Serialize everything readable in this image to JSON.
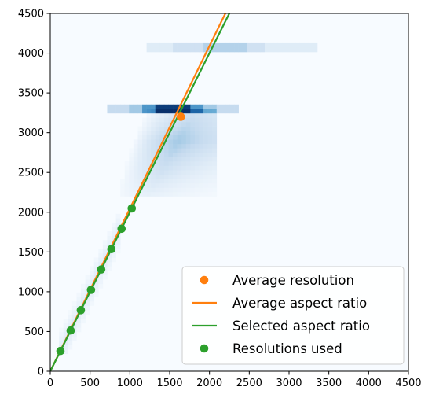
{
  "chart_data": {
    "type": "scatter",
    "title": "",
    "xlabel": "",
    "ylabel": "",
    "xlim": [
      0,
      4500
    ],
    "ylim": [
      0,
      4500
    ],
    "xticks": [
      "0",
      "500",
      "1000",
      "1500",
      "2000",
      "2500",
      "3000",
      "3500",
      "4000",
      "4500"
    ],
    "yticks": [
      "0",
      "500",
      "1000",
      "1500",
      "2000",
      "2500",
      "3000",
      "3500",
      "4000",
      "4500"
    ],
    "grid": false,
    "legend_position": "bottom-right",
    "background": {
      "type": "heatmap",
      "colormap": "Blues",
      "description_regions": [
        {
          "x_range": [
            1250,
            2300
          ],
          "y": 3290,
          "intensity": "high"
        },
        {
          "x_range": [
            1250,
            3300
          ],
          "y": 4080,
          "intensity": "medium"
        },
        {
          "x_range": [
            850,
            2000
          ],
          "y_range": [
            2300,
            3250
          ],
          "intensity": "low"
        }
      ]
    },
    "series": [
      {
        "name": "Average resolution",
        "type": "scatter",
        "color": "#ff7f0e",
        "points": [
          {
            "x": 1640,
            "y": 3200
          }
        ]
      },
      {
        "name": "Average aspect ratio",
        "type": "line",
        "color": "#ff7f0e",
        "points": [
          {
            "x": 0,
            "y": 0
          },
          {
            "x": 2200,
            "y": 4500
          }
        ]
      },
      {
        "name": "Selected aspect ratio",
        "type": "line",
        "color": "#2ca02c",
        "points": [
          {
            "x": 0,
            "y": 0
          },
          {
            "x": 2250,
            "y": 4500
          }
        ]
      },
      {
        "name": "Resolutions used",
        "type": "scatter",
        "color": "#2ca02c",
        "points": [
          {
            "x": 128,
            "y": 256
          },
          {
            "x": 256,
            "y": 512
          },
          {
            "x": 384,
            "y": 768
          },
          {
            "x": 512,
            "y": 1024
          },
          {
            "x": 640,
            "y": 1280
          },
          {
            "x": 768,
            "y": 1536
          },
          {
            "x": 896,
            "y": 1792
          },
          {
            "x": 1024,
            "y": 2048
          }
        ]
      }
    ]
  }
}
